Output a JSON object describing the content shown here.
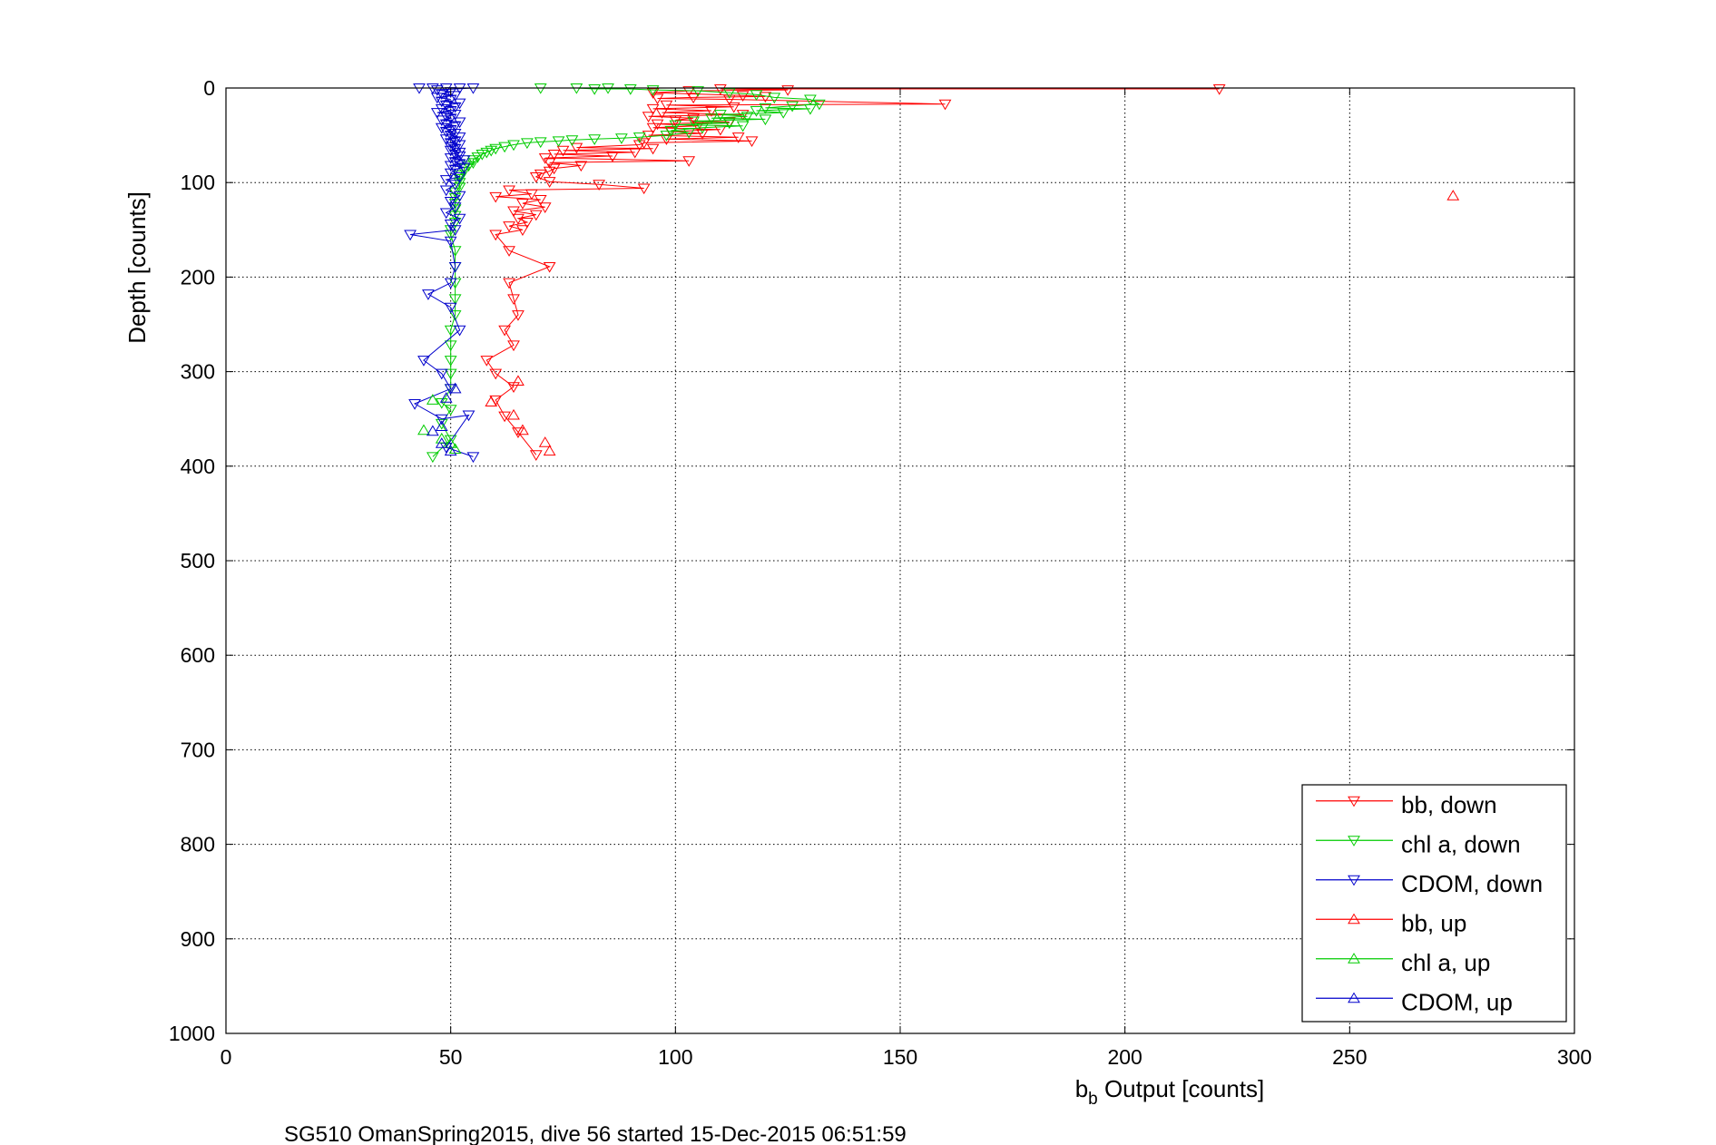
{
  "chart_data": {
    "type": "scatter",
    "xlabel_main": "b",
    "xlabel_sub": "b",
    "xlabel_rest": " Output [counts]",
    "ylabel": "Depth [counts]",
    "caption": "SG510 OmanSpring2015, dive 56 started 15-Dec-2015 06:51:59",
    "xlim": [
      0,
      300
    ],
    "ylim": [
      0,
      1000
    ],
    "y_reversed": true,
    "grid": true,
    "legend_position": "bottom-right",
    "xticks": [
      "0",
      "50",
      "100",
      "150",
      "200",
      "250",
      "300"
    ],
    "yticks": [
      "0",
      "100",
      "200",
      "300",
      "400",
      "500",
      "600",
      "700",
      "800",
      "900",
      "1000"
    ],
    "series": [
      {
        "name": "bb, down",
        "color": "#ff0000",
        "marker": "triangle-down",
        "connected": true,
        "points": [
          [
            221,
            1
          ],
          [
            110,
            1
          ],
          [
            125,
            2
          ],
          [
            103,
            3
          ],
          [
            95,
            5
          ],
          [
            115,
            8
          ],
          [
            120,
            9
          ],
          [
            104,
            10
          ],
          [
            96,
            11
          ],
          [
            112,
            12
          ],
          [
            160,
            17
          ],
          [
            98,
            18
          ],
          [
            113,
            20
          ],
          [
            95,
            22
          ],
          [
            108,
            24
          ],
          [
            97,
            26
          ],
          [
            115,
            28
          ],
          [
            94,
            30
          ],
          [
            104,
            32
          ],
          [
            100,
            34
          ],
          [
            112,
            36
          ],
          [
            96,
            38
          ],
          [
            105,
            40
          ],
          [
            95,
            42
          ],
          [
            110,
            44
          ],
          [
            99,
            46
          ],
          [
            106,
            48
          ],
          [
            94,
            50
          ],
          [
            114,
            52
          ],
          [
            98,
            54
          ],
          [
            117,
            56
          ],
          [
            93,
            58
          ],
          [
            92,
            60
          ],
          [
            78,
            63
          ],
          [
            95,
            64
          ],
          [
            75,
            66
          ],
          [
            91,
            68
          ],
          [
            73,
            70
          ],
          [
            86,
            72
          ],
          [
            71,
            74
          ],
          [
            103,
            77
          ],
          [
            72,
            79
          ],
          [
            79,
            82
          ],
          [
            73,
            85
          ],
          [
            72,
            88
          ],
          [
            70,
            91
          ],
          [
            69,
            94
          ],
          [
            72,
            99
          ],
          [
            83,
            102
          ],
          [
            93,
            106
          ],
          [
            63,
            108
          ],
          [
            68,
            112
          ],
          [
            60,
            115
          ],
          [
            70,
            118
          ],
          [
            66,
            122
          ],
          [
            71,
            126
          ],
          [
            64,
            130
          ],
          [
            69,
            134
          ],
          [
            65,
            138
          ],
          [
            67,
            142
          ],
          [
            63,
            146
          ],
          [
            66,
            150
          ],
          [
            60,
            155
          ],
          [
            63,
            172
          ],
          [
            72,
            189
          ],
          [
            63,
            206
          ],
          [
            64,
            223
          ],
          [
            65,
            240
          ],
          [
            62,
            256
          ],
          [
            64,
            272
          ],
          [
            58,
            288
          ],
          [
            60,
            302
          ],
          [
            64,
            316
          ],
          [
            60,
            330
          ],
          [
            62,
            347
          ],
          [
            65,
            364
          ],
          [
            69,
            388
          ]
        ]
      },
      {
        "name": "chl a, down",
        "color": "#00cc00",
        "marker": "triangle-down",
        "connected": true,
        "points": [
          [
            70,
            0
          ],
          [
            78,
            0
          ],
          [
            82,
            1
          ],
          [
            90,
            1
          ],
          [
            85,
            0
          ],
          [
            95,
            2
          ],
          [
            105,
            3
          ],
          [
            112,
            5
          ],
          [
            118,
            7
          ],
          [
            122,
            10
          ],
          [
            130,
            12
          ],
          [
            132,
            17
          ],
          [
            126,
            19
          ],
          [
            120,
            21
          ],
          [
            130,
            22
          ],
          [
            118,
            24
          ],
          [
            124,
            26
          ],
          [
            110,
            28
          ],
          [
            116,
            30
          ],
          [
            108,
            32
          ],
          [
            120,
            33
          ],
          [
            104,
            35
          ],
          [
            112,
            37
          ],
          [
            100,
            39
          ],
          [
            115,
            40
          ],
          [
            106,
            42
          ],
          [
            99,
            45
          ],
          [
            103,
            47
          ],
          [
            98,
            50
          ],
          [
            92,
            52
          ],
          [
            88,
            53
          ],
          [
            82,
            54
          ],
          [
            77,
            55
          ],
          [
            74,
            56
          ],
          [
            70,
            57
          ],
          [
            67,
            58
          ],
          [
            64,
            60
          ],
          [
            62,
            62
          ],
          [
            60,
            64
          ],
          [
            59,
            66
          ],
          [
            58,
            68
          ],
          [
            57,
            70
          ],
          [
            56,
            73
          ],
          [
            55,
            76
          ],
          [
            55,
            79
          ],
          [
            54,
            82
          ],
          [
            53,
            85
          ],
          [
            53,
            88
          ],
          [
            52,
            92
          ],
          [
            52,
            96
          ],
          [
            52,
            100
          ],
          [
            52,
            105
          ],
          [
            51,
            110
          ],
          [
            51,
            116
          ],
          [
            51,
            122
          ],
          [
            51,
            128
          ],
          [
            51,
            135
          ],
          [
            51,
            142
          ],
          [
            50,
            150
          ],
          [
            50,
            155
          ],
          [
            51,
            172
          ],
          [
            51,
            189
          ],
          [
            51,
            206
          ],
          [
            51,
            223
          ],
          [
            51,
            240
          ],
          [
            50,
            256
          ],
          [
            50,
            272
          ],
          [
            50,
            288
          ],
          [
            50,
            302
          ],
          [
            50,
            318
          ],
          [
            48,
            333
          ],
          [
            50,
            340
          ],
          [
            48,
            355
          ],
          [
            50,
            372
          ],
          [
            46,
            390
          ]
        ]
      },
      {
        "name": "CDOM, down",
        "color": "#0000cc",
        "marker": "triangle-down",
        "connected": true,
        "points": [
          [
            43,
            0
          ],
          [
            46,
            0
          ],
          [
            49,
            0
          ],
          [
            52,
            0
          ],
          [
            55,
            0
          ],
          [
            47,
            2
          ],
          [
            50,
            4
          ],
          [
            48,
            6
          ],
          [
            51,
            8
          ],
          [
            47,
            10
          ],
          [
            50,
            12
          ],
          [
            48,
            14
          ],
          [
            52,
            16
          ],
          [
            49,
            18
          ],
          [
            51,
            20
          ],
          [
            48,
            22
          ],
          [
            50,
            24
          ],
          [
            47,
            26
          ],
          [
            51,
            28
          ],
          [
            49,
            30
          ],
          [
            50,
            32
          ],
          [
            48,
            34
          ],
          [
            52,
            36
          ],
          [
            49,
            38
          ],
          [
            51,
            40
          ],
          [
            48,
            42
          ],
          [
            50,
            44
          ],
          [
            49,
            46
          ],
          [
            51,
            48
          ],
          [
            50,
            50
          ],
          [
            52,
            52
          ],
          [
            49,
            54
          ],
          [
            51,
            56
          ],
          [
            50,
            58
          ],
          [
            52,
            60
          ],
          [
            50,
            62
          ],
          [
            51,
            64
          ],
          [
            50,
            66
          ],
          [
            52,
            68
          ],
          [
            51,
            70
          ],
          [
            52,
            72
          ],
          [
            50,
            74
          ],
          [
            53,
            76
          ],
          [
            51,
            78
          ],
          [
            52,
            80
          ],
          [
            50,
            82
          ],
          [
            53,
            84
          ],
          [
            51,
            86
          ],
          [
            50,
            90
          ],
          [
            52,
            94
          ],
          [
            49,
            97
          ],
          [
            51,
            102
          ],
          [
            49,
            108
          ],
          [
            52,
            114
          ],
          [
            50,
            120
          ],
          [
            51,
            126
          ],
          [
            49,
            132
          ],
          [
            52,
            138
          ],
          [
            50,
            144
          ],
          [
            51,
            150
          ],
          [
            41,
            155
          ],
          [
            50,
            162
          ],
          [
            51,
            189
          ],
          [
            50,
            206
          ],
          [
            45,
            218
          ],
          [
            50,
            232
          ],
          [
            52,
            256
          ],
          [
            44,
            288
          ],
          [
            48,
            302
          ],
          [
            50,
            318
          ],
          [
            42,
            334
          ],
          [
            48,
            350
          ],
          [
            54,
            346
          ],
          [
            49,
            380
          ],
          [
            55,
            390
          ]
        ]
      },
      {
        "name": "bb, up",
        "color": "#ff0000",
        "marker": "triangle-up",
        "connected": false,
        "points": [
          [
            273,
            114
          ],
          [
            59,
            332
          ],
          [
            64,
            346
          ],
          [
            65,
            310
          ],
          [
            66,
            362
          ],
          [
            71,
            375
          ],
          [
            72,
            384
          ]
        ]
      },
      {
        "name": "chl a, up",
        "color": "#00cc00",
        "marker": "triangle-up",
        "connected": false,
        "points": [
          [
            46,
            330
          ],
          [
            44,
            362
          ],
          [
            50,
            376
          ],
          [
            51,
            382
          ],
          [
            48,
            371
          ]
        ]
      },
      {
        "name": "CDOM, up",
        "color": "#0000cc",
        "marker": "triangle-up",
        "connected": false,
        "points": [
          [
            49,
            328
          ],
          [
            48,
            358
          ],
          [
            48,
            376
          ],
          [
            50,
            384
          ],
          [
            46,
            363
          ],
          [
            51,
            318
          ]
        ]
      }
    ]
  }
}
